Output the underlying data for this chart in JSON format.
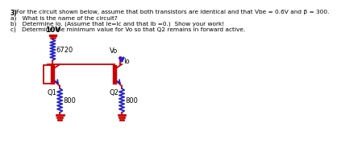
{
  "title_num": "3)",
  "title_text": "For the circuit shown below, assume that both transistors are identical and that Vbe = 0.6V and β = 300.",
  "qa": "a)   What is the name of the circuit?",
  "qb": "b)   Determine Io. (Assume that Ie=Ic and that Ib =0.)  Show your work!",
  "qc": "c)   Determine the minimum value for Vo so that Q2 remains in forward active.",
  "vcc_label": "10V",
  "r1_label": "6720",
  "r2_label": "800",
  "r3_label": "800",
  "q1_label": "Q1",
  "q2_label": "Q2",
  "vo_label": "Vo",
  "io_label": "Io",
  "wire_color": "#cc0000",
  "resistor_color": "#2222cc",
  "transistor_line_color": "#cc0000",
  "arrow_color": "#2222cc",
  "text_color": "#000000",
  "bg_color": "#ffffff",
  "vcc_dot_color": "#cc00cc",
  "lw": 1.3
}
